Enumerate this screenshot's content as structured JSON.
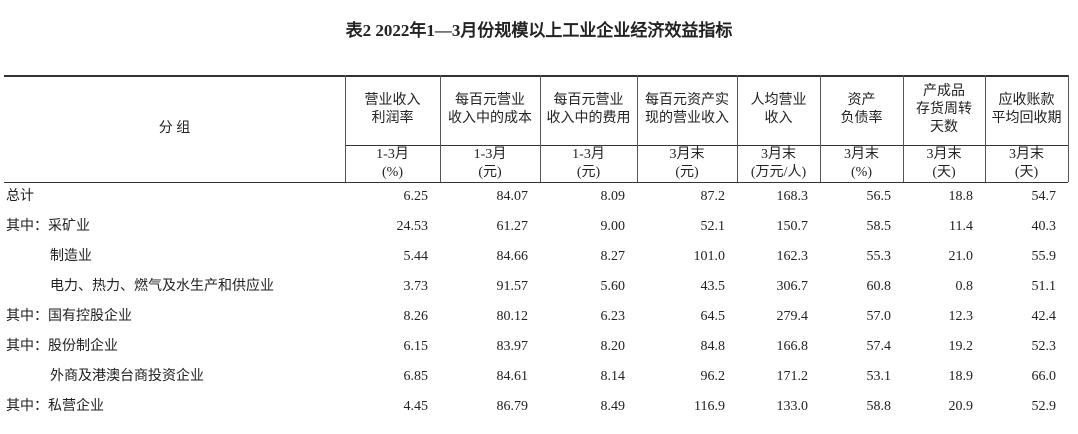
{
  "title": "表2  2022年1—3月份规模以上工业企业经济效益指标",
  "table": {
    "corner": "分  组",
    "headers": [
      {
        "name": [
          "营业收入",
          "利润率"
        ],
        "unit": [
          "1-3月",
          "(%)"
        ]
      },
      {
        "name": [
          "每百元营业",
          "收入中的成本"
        ],
        "unit": [
          "1-3月",
          "(元)"
        ]
      },
      {
        "name": [
          "每百元营业",
          "收入中的费用"
        ],
        "unit": [
          "1-3月",
          "(元)"
        ]
      },
      {
        "name": [
          "每百元资产实",
          "现的营业收入"
        ],
        "unit": [
          "3月末",
          "(元)"
        ]
      },
      {
        "name": [
          "人均营业",
          "收入"
        ],
        "unit": [
          "3月末",
          "(万元/人)"
        ]
      },
      {
        "name": [
          "资产",
          "负债率"
        ],
        "unit": [
          "3月末",
          "(%)"
        ]
      },
      {
        "name": [
          "产成品",
          "存货周转",
          "天数"
        ],
        "unit": [
          "3月末",
          "(天)"
        ]
      },
      {
        "name": [
          "应收账款",
          "平均回收期"
        ],
        "unit": [
          "3月末",
          "(天)"
        ]
      }
    ],
    "rows": [
      {
        "label": "总计",
        "values": [
          "6.25",
          "84.07",
          "8.09",
          "87.2",
          "168.3",
          "56.5",
          "18.8",
          "54.7"
        ]
      },
      {
        "label": "其中：采矿业",
        "values": [
          "24.53",
          "61.27",
          "9.00",
          "52.1",
          "150.7",
          "58.5",
          "11.4",
          "40.3"
        ]
      },
      {
        "label": "制造业",
        "values": [
          "5.44",
          "84.66",
          "8.27",
          "101.0",
          "162.3",
          "55.3",
          "21.0",
          "55.9"
        ]
      },
      {
        "label": "电力、热力、燃气及水生产和供应业",
        "values": [
          "3.73",
          "91.57",
          "5.60",
          "43.5",
          "306.7",
          "60.8",
          "0.8",
          "51.1"
        ]
      },
      {
        "label": "其中：国有控股企业",
        "values": [
          "8.26",
          "80.12",
          "6.23",
          "64.5",
          "279.4",
          "57.0",
          "12.3",
          "42.4"
        ]
      },
      {
        "label": "其中：股份制企业",
        "values": [
          "6.15",
          "83.97",
          "8.20",
          "84.8",
          "166.8",
          "57.4",
          "19.2",
          "52.3"
        ]
      },
      {
        "label": "外商及港澳台商投资企业",
        "values": [
          "6.85",
          "84.61",
          "8.14",
          "96.2",
          "171.2",
          "53.1",
          "18.9",
          "66.0"
        ]
      },
      {
        "label": "其中：私营企业",
        "values": [
          "4.45",
          "86.79",
          "8.49",
          "116.9",
          "133.0",
          "58.8",
          "20.9",
          "52.9"
        ]
      }
    ]
  }
}
